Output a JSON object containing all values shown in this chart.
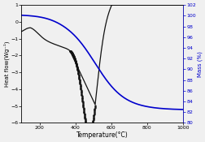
{
  "xlabel": "Temperature(°C)",
  "ylabel_left": "Heat flow(Wg⁻¹)",
  "ylabel_right": "Mass (%)",
  "xlim": [
    100,
    1000
  ],
  "ylim_left": [
    -6,
    1
  ],
  "ylim_right": [
    80,
    102
  ],
  "yticks_left": [
    1,
    0,
    -1,
    -2,
    -3,
    -4,
    -5,
    -6
  ],
  "yticks_right": [
    80,
    82,
    84,
    86,
    88,
    90,
    92,
    94,
    96,
    98,
    100,
    102
  ],
  "xticks": [
    200,
    400,
    600,
    800,
    1000
  ],
  "line_color_dsc": "#111111",
  "line_color_tga": "#0000cc",
  "background_color": "#f0f0f0"
}
